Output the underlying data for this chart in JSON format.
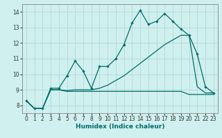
{
  "xlabel": "Humidex (Indice chaleur)",
  "background_color": "#cff0ee",
  "grid_color": "#b8dbd8",
  "line_color": "#006b6b",
  "x": [
    0,
    1,
    2,
    3,
    4,
    5,
    6,
    7,
    8,
    9,
    10,
    11,
    12,
    13,
    14,
    15,
    16,
    17,
    18,
    19,
    20,
    21,
    22,
    23
  ],
  "y_top": [
    8.3,
    7.8,
    7.8,
    9.1,
    9.1,
    9.9,
    10.85,
    10.2,
    9.1,
    10.5,
    10.5,
    11.0,
    11.9,
    13.3,
    14.1,
    13.2,
    13.4,
    13.9,
    13.4,
    12.9,
    12.5,
    11.3,
    9.2,
    8.8
  ],
  "y_mid": [
    8.3,
    7.8,
    7.8,
    9.0,
    9.0,
    8.95,
    9.0,
    9.0,
    9.0,
    9.1,
    9.3,
    9.6,
    9.9,
    10.3,
    10.7,
    11.1,
    11.5,
    11.9,
    12.2,
    12.5,
    12.5,
    9.2,
    8.8,
    8.8
  ],
  "y_bot": [
    8.3,
    7.8,
    7.8,
    9.0,
    9.0,
    8.9,
    8.9,
    8.9,
    8.9,
    8.9,
    8.9,
    8.9,
    8.9,
    8.9,
    8.9,
    8.9,
    8.9,
    8.9,
    8.9,
    8.9,
    8.7,
    8.7,
    8.7,
    8.7
  ],
  "ylim": [
    7.5,
    14.5
  ],
  "yticks": [
    8,
    9,
    10,
    11,
    12,
    13,
    14
  ],
  "xlim": [
    -0.5,
    23.5
  ],
  "xticks": [
    0,
    1,
    2,
    3,
    4,
    5,
    6,
    7,
    8,
    9,
    10,
    11,
    12,
    13,
    14,
    15,
    16,
    17,
    18,
    19,
    20,
    21,
    22,
    23
  ]
}
